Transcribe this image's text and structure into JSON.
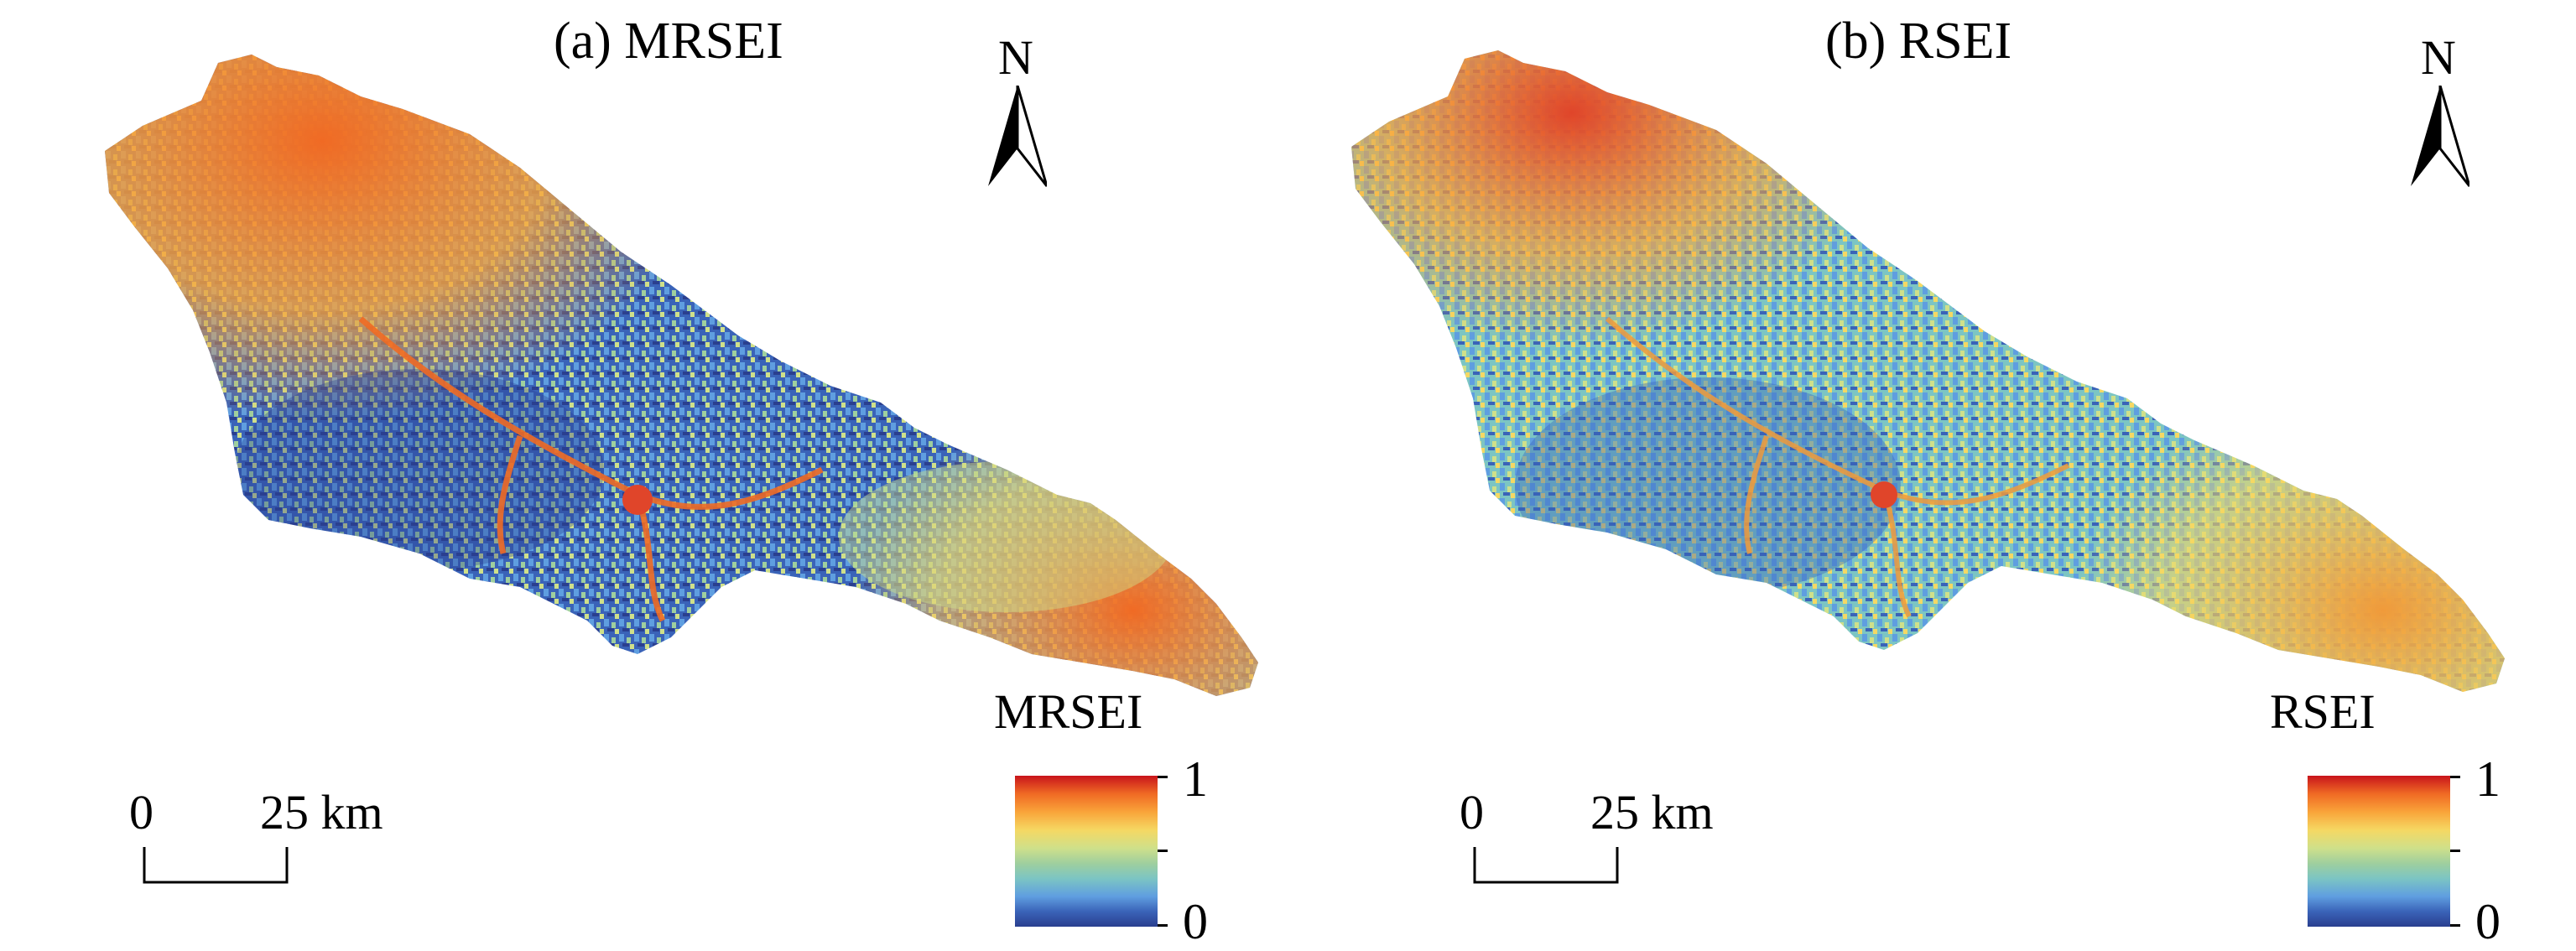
{
  "figure": {
    "panels": [
      {
        "id": "a",
        "title": "(a) MRSEI",
        "north_label": "N",
        "scale_start": "0",
        "scale_end": "25 km",
        "legend_title": "MRSEI",
        "legend_max": "1",
        "legend_min": "0"
      },
      {
        "id": "b",
        "title": "(b) RSEI",
        "north_label": "N",
        "scale_start": "0",
        "scale_end": "25 km",
        "legend_title": "RSEI",
        "legend_max": "1",
        "legend_min": "0"
      }
    ],
    "colors": {
      "high": "#c8141b",
      "orange": "#f06a24",
      "yellow": "#f5d863",
      "green": "#9fcf9e",
      "light-blue": "#5f9ee0",
      "low": "#2a3f8f"
    }
  }
}
